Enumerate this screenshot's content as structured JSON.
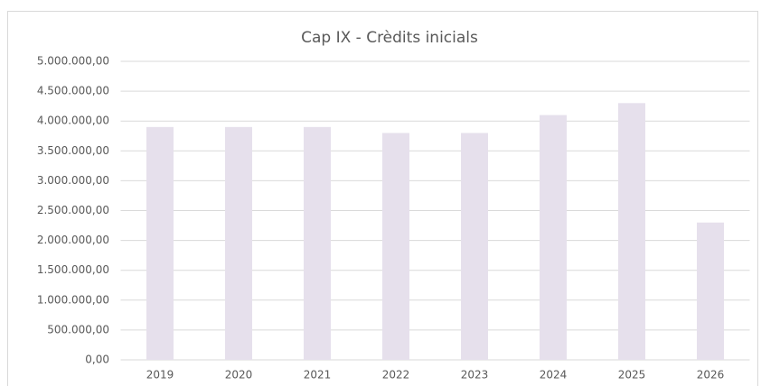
{
  "chart_data": {
    "type": "bar",
    "title": "Cap IX - Crèdits inicials",
    "categories": [
      "2019",
      "2020",
      "2021",
      "2022",
      "2023",
      "2024",
      "2025",
      "2026"
    ],
    "values": [
      3900000,
      3900000,
      3900000,
      3800000,
      3800000,
      4100000,
      4300000,
      2300000
    ],
    "color": "#e6e0ec",
    "ylim": [
      0,
      5000000
    ],
    "yticks": [
      {
        "value": 0,
        "label": "0,00"
      },
      {
        "value": 500000,
        "label": "500.000,00"
      },
      {
        "value": 1000000,
        "label": "1.000.000,00"
      },
      {
        "value": 1500000,
        "label": "1.500.000,00"
      },
      {
        "value": 2000000,
        "label": "2.000.000,00"
      },
      {
        "value": 2500000,
        "label": "2.500.000,00"
      },
      {
        "value": 3000000,
        "label": "3.000.000,00"
      },
      {
        "value": 3500000,
        "label": "3.500.000,00"
      },
      {
        "value": 4000000,
        "label": "4.000.000,00"
      },
      {
        "value": 4500000,
        "label": "4.500.000,00"
      },
      {
        "value": 5000000,
        "label": "5.000.000,00"
      }
    ],
    "grid": true
  }
}
